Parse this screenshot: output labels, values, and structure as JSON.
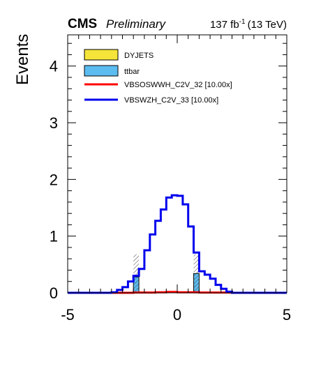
{
  "header": {
    "experiment": "CMS",
    "status": "Preliminary",
    "lumi_value": "137 fb",
    "lumi_exp": "-1",
    "lumi_energy": "(13 TeV)"
  },
  "chart_data": {
    "type": "histogram",
    "ylabel": "Events",
    "xlabel": "",
    "xlim": [
      -5,
      5
    ],
    "ylim": [
      0,
      4.55
    ],
    "bin_width": 0.5,
    "x_ticks": [
      "-5",
      "0",
      "5"
    ],
    "y_ticks": [
      "0",
      "1",
      "2",
      "3",
      "4"
    ],
    "stack": [
      {
        "name": "DYJETS",
        "color": "#f5e43a",
        "bins": []
      },
      {
        "name": "ttbar",
        "color": "#5bbcf0",
        "bins": [
          {
            "x0": -2.0,
            "x1": -1.75,
            "value": 0.28
          },
          {
            "x0": 0.75,
            "x1": 1.0,
            "value": 0.34
          }
        ]
      }
    ],
    "uncertainty": [
      {
        "x0": -2.0,
        "x1": -1.75,
        "low": 0.0,
        "high": 0.68
      },
      {
        "x0": 0.75,
        "x1": 1.0,
        "low": 0.0,
        "high": 0.68
      }
    ],
    "signals": [
      {
        "name": "VBSOSWWH_C2V_32 [10.00x]",
        "color": "#ff0000",
        "edges": [
          -5,
          -2.0,
          -1.0,
          -0.5,
          0.0,
          1.0,
          2.5,
          5
        ],
        "values": [
          0,
          0.005,
          0.01,
          0.015,
          0.01,
          0.005,
          0
        ]
      },
      {
        "name": "VBSWZH_C2V_33 [10.00x]",
        "color": "#0000ee",
        "edges": [
          -5,
          -3.0,
          -2.75,
          -2.5,
          -2.25,
          -2.0,
          -1.75,
          -1.5,
          -1.25,
          -1.0,
          -0.75,
          -0.5,
          -0.25,
          0.0,
          0.25,
          0.5,
          0.75,
          1.0,
          1.25,
          1.5,
          1.75,
          2.0,
          2.25,
          2.5,
          2.75,
          5
        ],
        "values": [
          0,
          0.01,
          0.05,
          0.1,
          0.2,
          0.3,
          0.42,
          0.75,
          1.03,
          1.27,
          1.47,
          1.68,
          1.72,
          1.71,
          1.56,
          1.17,
          0.71,
          0.38,
          0.32,
          0.25,
          0.14,
          0.07,
          0.02,
          0,
          0
        ]
      }
    ],
    "legend": [
      {
        "label": "DYJETS",
        "kind": "box",
        "color": "#f5e43a"
      },
      {
        "label": "ttbar",
        "kind": "box",
        "color": "#5bbcf0"
      },
      {
        "label": "VBSOSWWH_C2V_32 [10.00x]",
        "kind": "line",
        "color": "#ff0000"
      },
      {
        "label": "VBSWZH_C2V_33 [10.00x]",
        "kind": "line",
        "color": "#0000ee"
      }
    ],
    "legend_position": "top-left",
    "grid": false
  }
}
